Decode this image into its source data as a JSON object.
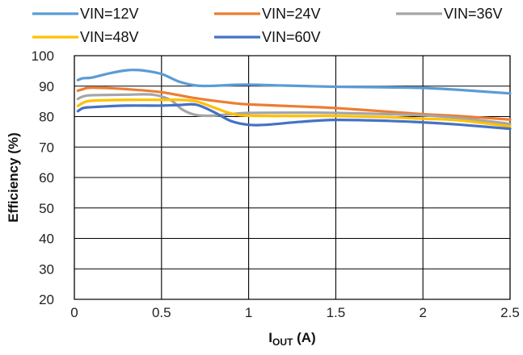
{
  "chart_data": {
    "type": "line",
    "xlabel_main": "I",
    "xlabel_sub": "OUT",
    "xlabel_unit": " (A)",
    "ylabel": "Efficiency (%)",
    "xlim": [
      0,
      2.5
    ],
    "ylim": [
      20,
      100
    ],
    "xticks": [
      0,
      0.5,
      1,
      1.5,
      2,
      2.5
    ],
    "xtick_labels": [
      "0",
      "0.5",
      "1",
      "1.5",
      "2",
      "2.5"
    ],
    "yticks": [
      20,
      30,
      40,
      50,
      60,
      70,
      80,
      90,
      100
    ],
    "ytick_labels": [
      "20",
      "30",
      "40",
      "50",
      "60",
      "70",
      "80",
      "90",
      "100"
    ],
    "grid": true,
    "legend_position": "top",
    "series": [
      {
        "name": "VIN=12V",
        "color": "#5b9bd5",
        "x": [
          0.02,
          0.05,
          0.1,
          0.2,
          0.3,
          0.35,
          0.4,
          0.5,
          0.6,
          0.7,
          0.8,
          0.9,
          1.0,
          1.2,
          1.5,
          1.8,
          2.0,
          2.2,
          2.5
        ],
        "y": [
          92.0,
          92.6,
          92.8,
          94.2,
          95.2,
          95.3,
          95.1,
          94.0,
          91.5,
          90.2,
          90.1,
          90.4,
          90.5,
          90.2,
          89.8,
          89.6,
          89.4,
          88.8,
          87.6
        ]
      },
      {
        "name": "VIN=24V",
        "color": "#ed7d31",
        "x": [
          0.02,
          0.05,
          0.1,
          0.3,
          0.5,
          0.7,
          0.9,
          1.0,
          1.3,
          1.5,
          1.8,
          2.0,
          2.2,
          2.5
        ],
        "y": [
          88.5,
          89.0,
          89.5,
          89.0,
          88.0,
          86.0,
          84.5,
          84.0,
          83.3,
          82.8,
          81.6,
          80.8,
          80.2,
          79.0
        ]
      },
      {
        "name": "VIN=36V",
        "color": "#a5a5a5",
        "x": [
          0.02,
          0.05,
          0.1,
          0.3,
          0.45,
          0.55,
          0.62,
          0.7,
          0.8,
          0.9,
          1.0,
          1.3,
          1.5,
          1.8,
          2.0,
          2.2,
          2.5
        ],
        "y": [
          85.8,
          86.6,
          87.0,
          87.2,
          87.2,
          85.5,
          82.3,
          80.5,
          80.3,
          80.8,
          81.2,
          81.3,
          81.2,
          80.8,
          80.4,
          79.6,
          77.6
        ]
      },
      {
        "name": "VIN=48V",
        "color": "#ffc000",
        "x": [
          0.02,
          0.05,
          0.1,
          0.3,
          0.5,
          0.6,
          0.7,
          0.8,
          0.9,
          1.0,
          1.3,
          1.5,
          1.8,
          2.0,
          2.2,
          2.5
        ],
        "y": [
          83.5,
          84.5,
          85.2,
          85.5,
          85.5,
          85.5,
          85.0,
          83.0,
          81.0,
          80.3,
          80.2,
          80.2,
          79.8,
          79.3,
          78.8,
          76.8
        ]
      },
      {
        "name": "VIN=60V",
        "color": "#4472c4",
        "x": [
          0.02,
          0.05,
          0.1,
          0.3,
          0.5,
          0.6,
          0.7,
          0.8,
          0.9,
          1.0,
          1.1,
          1.3,
          1.5,
          1.8,
          2.0,
          2.2,
          2.5
        ],
        "y": [
          81.8,
          82.8,
          83.1,
          83.6,
          83.6,
          83.8,
          83.9,
          81.5,
          78.5,
          77.3,
          77.3,
          78.3,
          78.9,
          78.6,
          78.1,
          77.4,
          76.0
        ]
      }
    ]
  }
}
